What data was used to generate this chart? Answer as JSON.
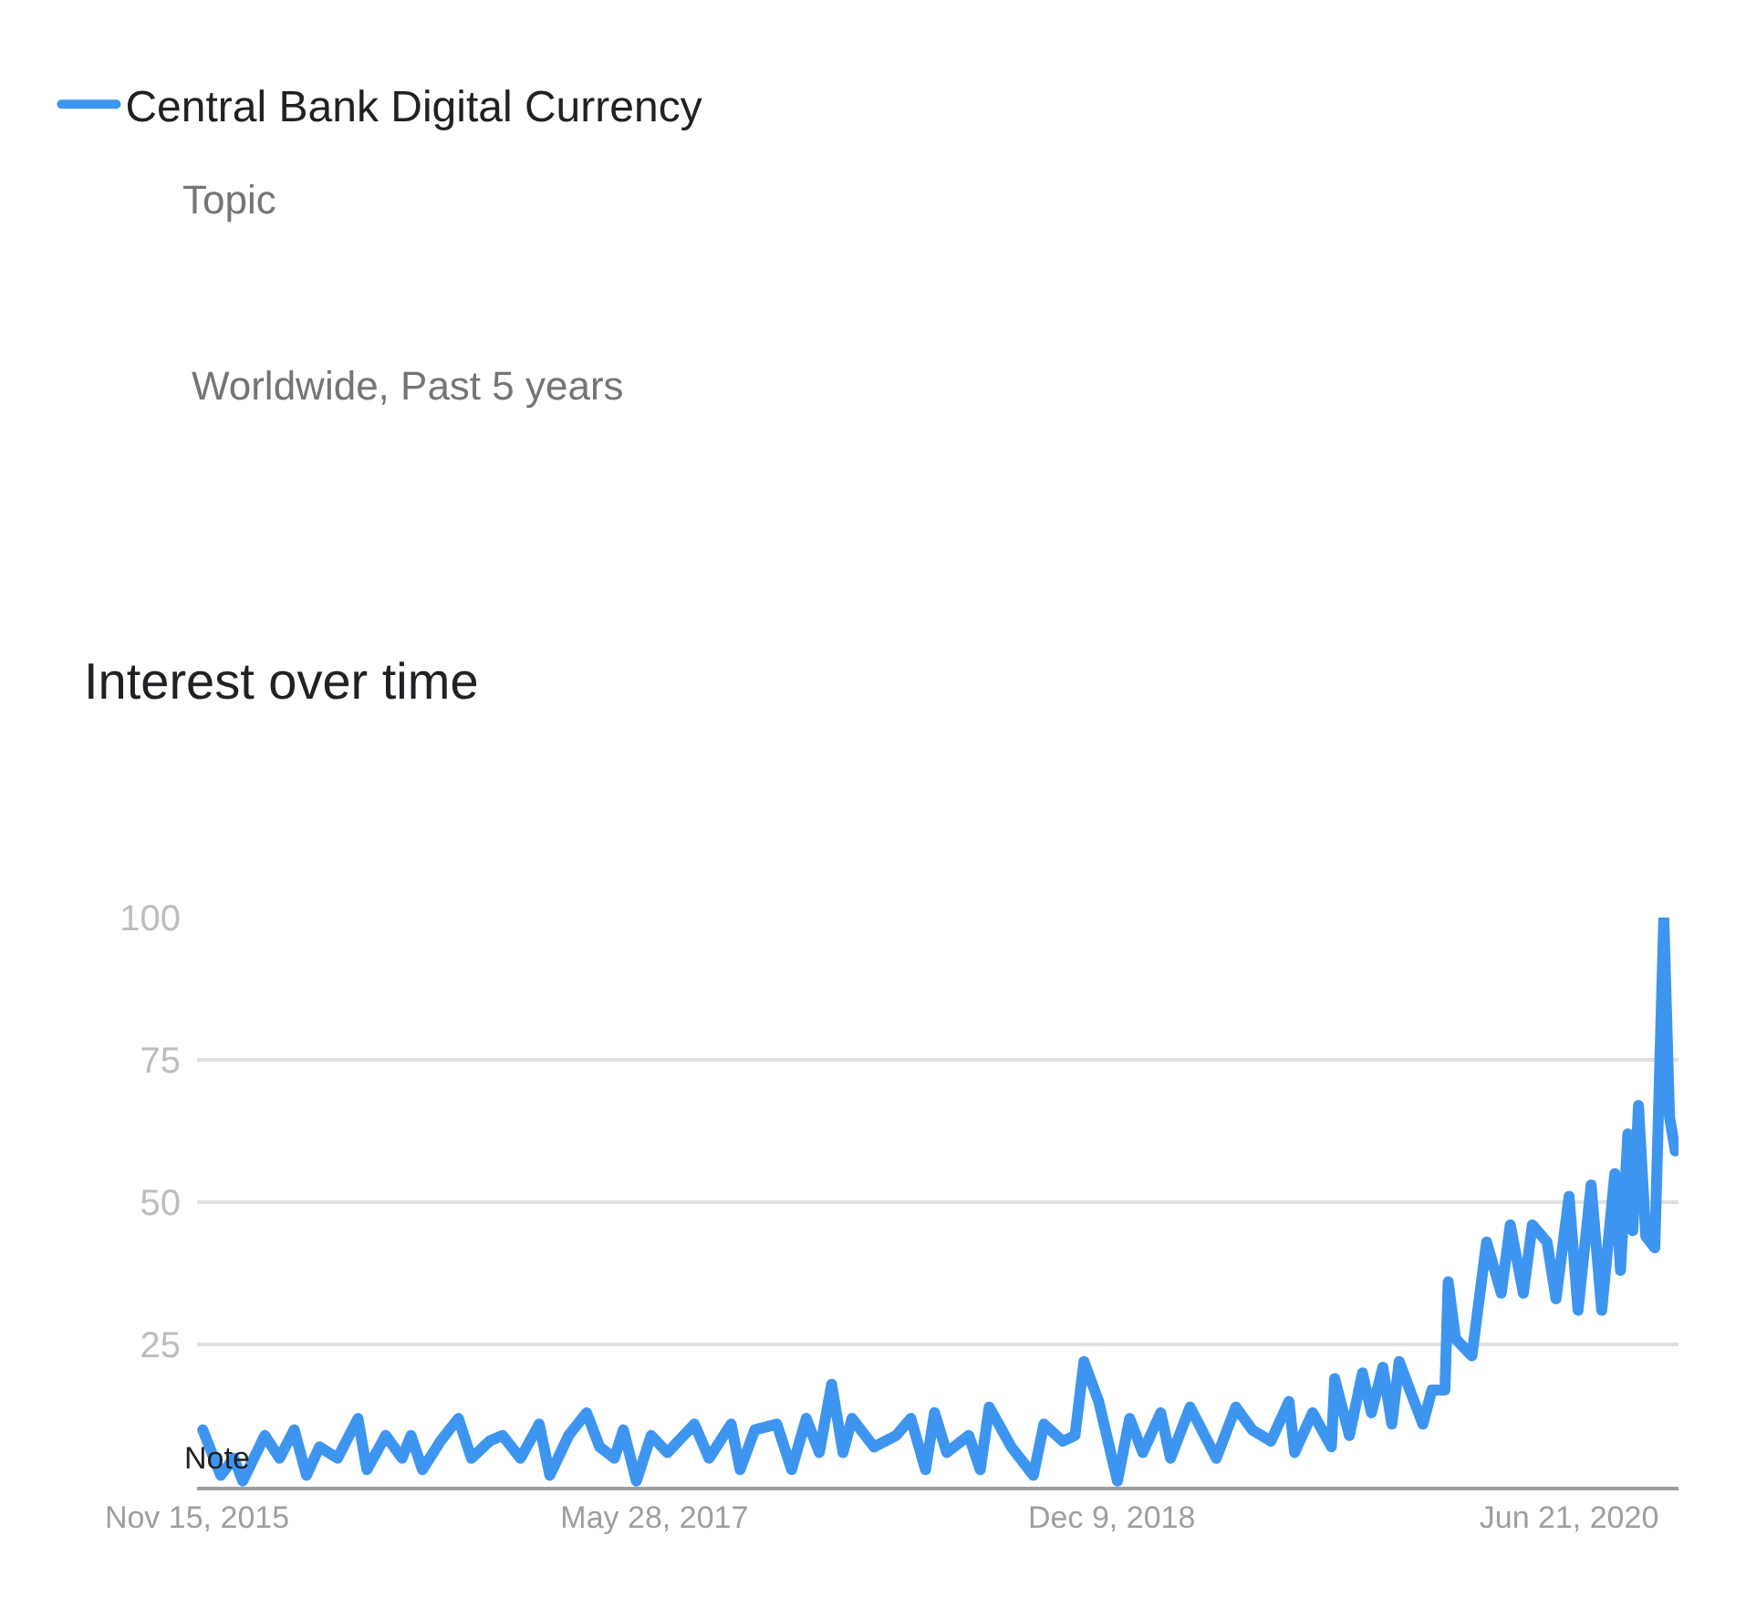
{
  "chart_data": {
    "type": "line",
    "title": "Interest over time",
    "annotations": [
      "Topic",
      "Worldwide, Past 5 years",
      {
        "text": "Note",
        "x": "2015-12-10",
        "y": 5
      }
    ],
    "legend": "top left",
    "grid": "y",
    "marker": "none",
    "line_style": "solid",
    "xlim": [
      "2015-11-15",
      "2020-11-02"
    ],
    "xticks": [
      {
        "value": "2015-11-15",
        "label": "Nov 15, 2015"
      },
      {
        "value": "2017-05-28",
        "label": "May 28, 2017"
      },
      {
        "value": "2018-12-09",
        "label": "Dec 9, 2018"
      },
      {
        "value": "2020-06-21",
        "label": "Jun 21, 2020"
      }
    ],
    "ylim": [
      0,
      100
    ],
    "yticks": [
      25,
      50,
      75,
      100
    ],
    "x": [
      "2015-11-22",
      "2015-12-14",
      "2015-12-30",
      "2016-01-10",
      "2016-02-06",
      "2016-02-24",
      "2016-03-13",
      "2016-03-28",
      "2016-04-13",
      "2016-05-05",
      "2016-05-30",
      "2016-06-10",
      "2016-07-03",
      "2016-07-23",
      "2016-08-03",
      "2016-08-17",
      "2016-09-08",
      "2016-09-30",
      "2016-10-16",
      "2016-11-07",
      "2016-11-23",
      "2016-12-15",
      "2017-01-07",
      "2017-01-20",
      "2017-02-12",
      "2017-03-06",
      "2017-03-22",
      "2017-04-09",
      "2017-04-20",
      "2017-05-06",
      "2017-05-24",
      "2017-06-13",
      "2017-07-16",
      "2017-08-03",
      "2017-08-30",
      "2017-09-10",
      "2017-09-28",
      "2017-10-25",
      "2017-11-12",
      "2017-11-30",
      "2017-12-16",
      "2017-12-31",
      "2018-01-14",
      "2018-01-25",
      "2018-02-21",
      "2018-03-20",
      "2018-04-07",
      "2018-04-25",
      "2018-05-06",
      "2018-05-21",
      "2018-06-17",
      "2018-07-01",
      "2018-07-12",
      "2018-08-08",
      "2018-09-04",
      "2018-09-17",
      "2018-10-10",
      "2018-10-25",
      "2018-11-05",
      "2018-11-23",
      "2018-12-16",
      "2018-12-31",
      "2019-01-16",
      "2019-02-07",
      "2019-02-19",
      "2019-03-15",
      "2019-04-16",
      "2019-05-10",
      "2019-05-30",
      "2019-06-22",
      "2019-07-14",
      "2019-07-21",
      "2019-08-12",
      "2019-09-04",
      "2019-09-08",
      "2019-09-26",
      "2019-10-12",
      "2019-10-23",
      "2019-11-06",
      "2019-11-17",
      "2019-11-26",
      "2019-12-09",
      "2019-12-25",
      "2020-01-05",
      "2020-01-21",
      "2020-01-25",
      "2020-02-03",
      "2020-02-23",
      "2020-03-12",
      "2020-03-30",
      "2020-04-10",
      "2020-04-26",
      "2020-05-07",
      "2020-05-25",
      "2020-06-05",
      "2020-06-21",
      "2020-07-02",
      "2020-07-18",
      "2020-07-31",
      "2020-08-16",
      "2020-08-23",
      "2020-09-01",
      "2020-09-07",
      "2020-09-14",
      "2020-09-23",
      "2020-10-04",
      "2020-10-15",
      "2020-10-22",
      "2020-10-29"
    ],
    "series": [
      {
        "name": "Central Bank Digital Currency",
        "color": "#3d95f0",
        "values": [
          10,
          2,
          5,
          1,
          9,
          5,
          10,
          2,
          7,
          5,
          12,
          3,
          9,
          5,
          9,
          3,
          8,
          12,
          5,
          8,
          9,
          5,
          11,
          2,
          9,
          13,
          7,
          5,
          10,
          1,
          9,
          6,
          11,
          5,
          11,
          3,
          10,
          11,
          3,
          12,
          6,
          18,
          6,
          12,
          7,
          9,
          12,
          3,
          13,
          6,
          9,
          3,
          14,
          7,
          2,
          11,
          8,
          9,
          22,
          15,
          1,
          12,
          6,
          13,
          5,
          14,
          5,
          14,
          10,
          8,
          15,
          6,
          13,
          7,
          19,
          9,
          20,
          13,
          21,
          11,
          22,
          17,
          11,
          17,
          17,
          36,
          26,
          23,
          43,
          34,
          46,
          34,
          46,
          43,
          33,
          51,
          31,
          53,
          31,
          55,
          38,
          62,
          45,
          67,
          44,
          42,
          100,
          65,
          59
        ]
      }
    ]
  }
}
